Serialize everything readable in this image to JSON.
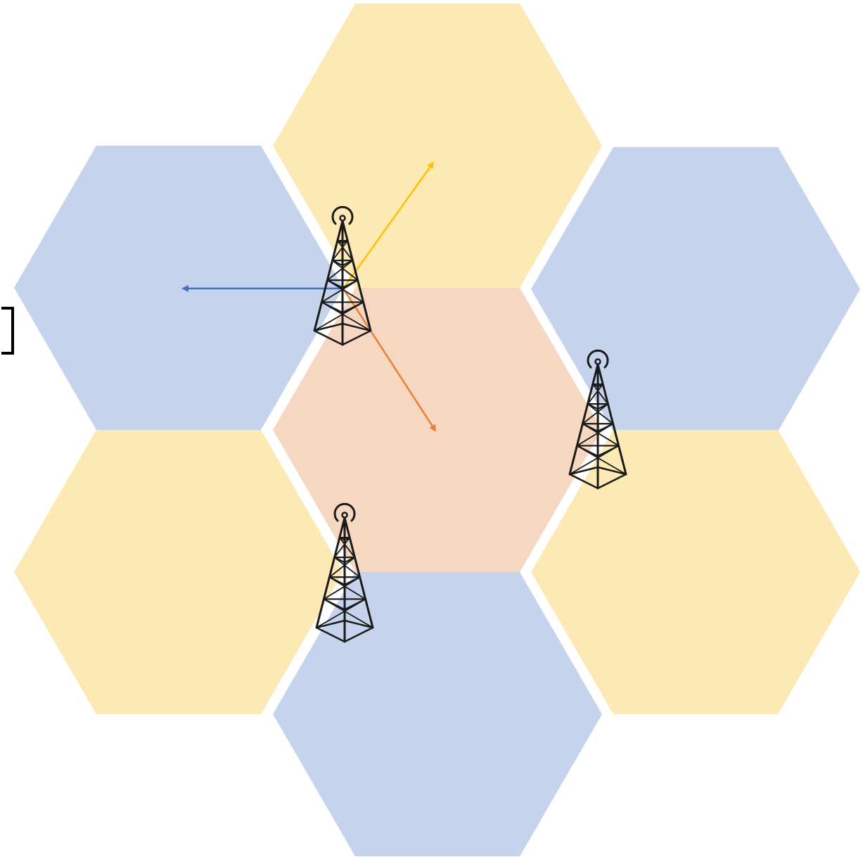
{
  "diagram": {
    "type": "hexagonal-cell-layout",
    "colors": {
      "background": "#ffffff",
      "cell_blue": "#c5d3ec",
      "cell_yellow": "#fde9b3",
      "cell_orange": "#f6d8c2",
      "arrow_blue": "#4472c4",
      "arrow_yellow": "#ffc000",
      "arrow_orange": "#ed7d31",
      "tower": "#1a1a1a",
      "bracket": "#000000"
    },
    "cells": [
      {
        "id": "top",
        "color": "cell_yellow"
      },
      {
        "id": "upper-left",
        "color": "cell_blue"
      },
      {
        "id": "upper-right",
        "color": "cell_blue"
      },
      {
        "id": "center",
        "color": "cell_orange"
      },
      {
        "id": "lower-left",
        "color": "cell_yellow"
      },
      {
        "id": "lower-right",
        "color": "cell_yellow"
      },
      {
        "id": "bottom",
        "color": "cell_blue"
      }
    ],
    "towers": [
      {
        "id": "tower-1",
        "icon": "radio-tower-icon",
        "sectors": 3
      },
      {
        "id": "tower-2",
        "icon": "radio-tower-icon",
        "sectors": 0
      },
      {
        "id": "tower-3",
        "icon": "radio-tower-icon",
        "sectors": 0
      }
    ],
    "sector_arrows": [
      {
        "id": "sector-arrow-blue",
        "color": "arrow_blue",
        "points_to": "upper-left"
      },
      {
        "id": "sector-arrow-yellow",
        "color": "arrow_yellow",
        "points_to": "top"
      },
      {
        "id": "sector-arrow-orange",
        "color": "arrow_orange",
        "points_to": "center"
      }
    ]
  }
}
